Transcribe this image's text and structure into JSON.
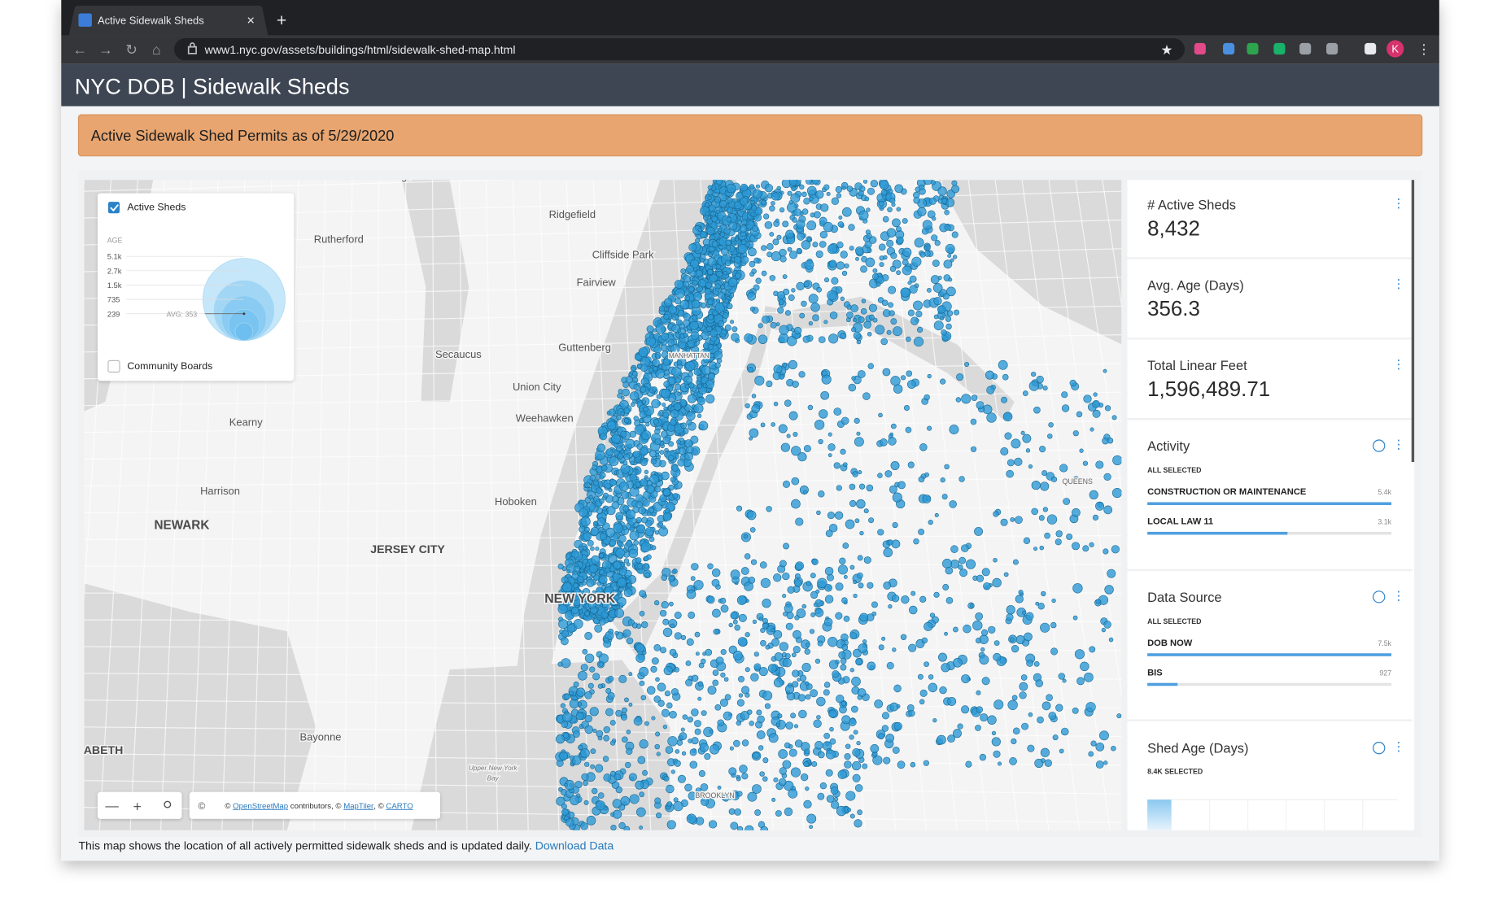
{
  "browser": {
    "tab_title": "Active Sidewalk Sheds",
    "url": "www1.nyc.gov/assets/buildings/html/sidewalk-shed-map.html",
    "profile_initial": "K"
  },
  "header": {
    "title": "NYC DOB | Sidewalk Sheds"
  },
  "banner": {
    "text": "Active Sidewalk Shed Permits as of 5/29/2020"
  },
  "legend": {
    "layer": "Active Sheds",
    "axis_label": "AGE",
    "ticks": [
      {
        "value": 5100,
        "label": "5.1k"
      },
      {
        "value": 2700,
        "label": "2.7k"
      },
      {
        "value": 1500,
        "label": "1.5k"
      },
      735,
      239
    ],
    "avg": {
      "value": 353,
      "label": "AVG: 353"
    },
    "second_layer": "Community Boards"
  },
  "map": {
    "places": [
      "Wood-Ridge",
      "Ridgefield",
      "Rutherford",
      "Cliffside Park",
      "Fairview",
      "Secaucus",
      "Guttenberg",
      "Union City",
      "Weehawken",
      "Kearny",
      "Harrison",
      "Hoboken",
      "NEWARK",
      "JERSEY CITY",
      "NEW YORK",
      "MANHATTAN",
      "QUEENS",
      "Bayonne",
      "ABETH",
      "Upper New York",
      "Bay",
      "BROOKLYN"
    ],
    "attribution": [
      "© ",
      "OpenStreetMap",
      " contributors, © ",
      "MapTiler",
      ", © ",
      "CARTO"
    ],
    "copyright_button": "©"
  },
  "widgets": {
    "active_sheds": {
      "title": "# Active Sheds",
      "value": "8,432"
    },
    "avg_age": {
      "title": "Avg. Age (Days)",
      "value": "356.3"
    },
    "linear_feet": {
      "title": "Total Linear Feet",
      "value": "1,596,489.71"
    },
    "activity": {
      "title": "Activity",
      "status": "ALL SELECTED",
      "items": [
        {
          "name": "CONSTRUCTION OR MAINTENANCE",
          "count": 5400,
          "count_label": "5.4k"
        },
        {
          "name": "LOCAL LAW 11",
          "count": 3100,
          "count_label": "3.1k"
        }
      ]
    },
    "data_source": {
      "title": "Data Source",
      "status": "ALL SELECTED",
      "items": [
        {
          "name": "DOB NOW",
          "count": 7500,
          "count_label": "7.5k"
        },
        {
          "name": "BIS",
          "count": 927
        }
      ]
    },
    "shed_age": {
      "title": "Shed Age (Days)",
      "status": "8.4K SELECTED"
    }
  },
  "footer": {
    "text": "This map shows the location of all actively permitted sidewalk sheds and is updated daily.",
    "link": "Download Data"
  }
}
